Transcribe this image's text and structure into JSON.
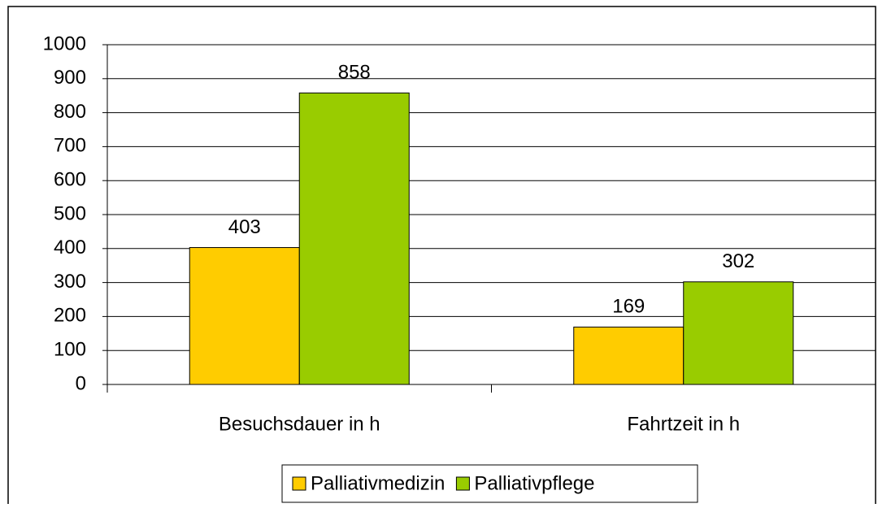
{
  "chart_data": {
    "type": "bar",
    "categories": [
      "Besuchsdauer in h",
      "Fahrtzeit in h"
    ],
    "series": [
      {
        "name": "Palliativmedizin",
        "color": "#ffcc00",
        "values": [
          403,
          169
        ]
      },
      {
        "name": "Palliativpflege",
        "color": "#99cc00",
        "values": [
          858,
          302
        ]
      }
    ],
    "ylim": [
      0,
      1000
    ],
    "yticks": [
      0,
      100,
      200,
      300,
      400,
      500,
      600,
      700,
      800,
      900,
      1000
    ],
    "grid": true,
    "legend": "bottom"
  }
}
